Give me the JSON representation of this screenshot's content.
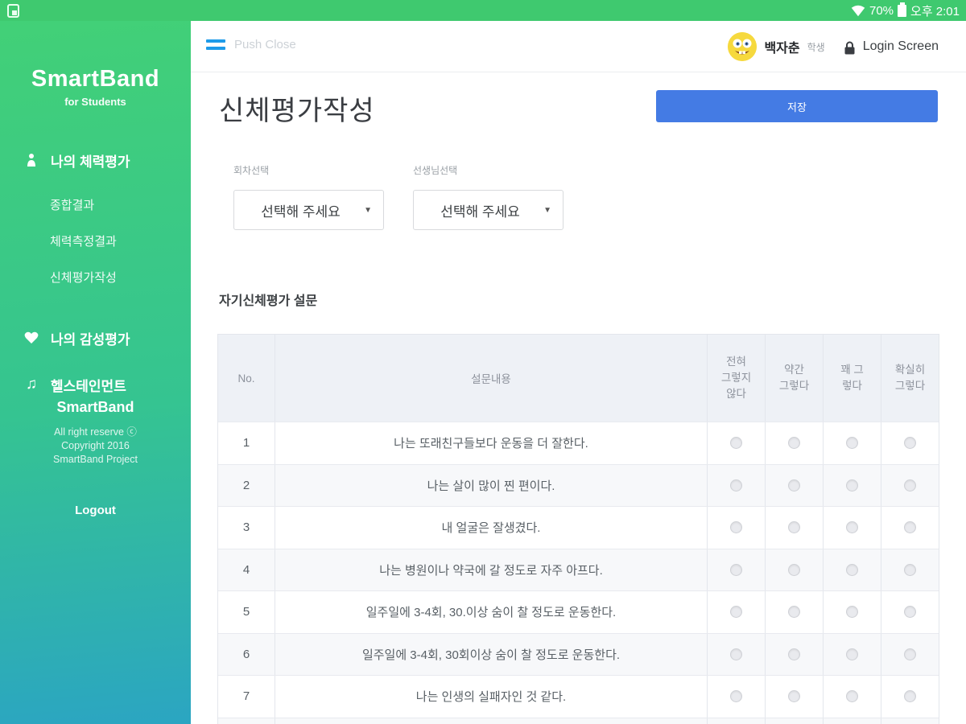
{
  "status_bar": {
    "battery_percent": "70%",
    "time": "오후 2:01"
  },
  "sidebar": {
    "logo": "SmartBand",
    "logo_sub": "for Students",
    "menu": [
      {
        "icon": "person-icon",
        "label": "나의 체력평가"
      },
      {
        "icon": "heart-icon",
        "label": "나의 감성평가"
      },
      {
        "icon": "music-icon",
        "label": "헬스테인먼트"
      }
    ],
    "submenu": [
      "종합결과",
      "체력측정결과",
      "신체평가작성"
    ],
    "footer_brand": "SmartBand",
    "footer_lines": [
      "All right reserve ⓒ",
      "Copyright 2016",
      "SmartBand Project"
    ],
    "logout_label": "Logout"
  },
  "header": {
    "push_close_label": "Push Close",
    "user_name": "백자춘",
    "user_role": "학생",
    "login_screen_label": "Login Screen"
  },
  "page": {
    "title": "신체평가작성",
    "save_label": "저장"
  },
  "filters": [
    {
      "label": "회차선택",
      "value": "선택해 주세요"
    },
    {
      "label": "선생님선택",
      "value": "선택해 주세요"
    }
  ],
  "survey": {
    "section_title": "자기신체평가 설문",
    "columns": {
      "no": "No.",
      "question": "설문내용",
      "options": [
        "전혀\n그렇지\n않다",
        "약간\n그렇다",
        "꽤 그\n렇다",
        "확실히\n그렇다"
      ]
    },
    "rows": [
      {
        "no": "1",
        "question": "나는 또래친구들보다 운동을 더 잘한다."
      },
      {
        "no": "2",
        "question": "나는 살이 많이 찐 편이다."
      },
      {
        "no": "3",
        "question": "내 얼굴은 잘생겼다."
      },
      {
        "no": "4",
        "question": "나는 병원이나 약국에 갈 정도로 자주 아프다."
      },
      {
        "no": "5",
        "question": "일주일에 3-4회, 30.이상 숨이 찰 정도로 운동한다."
      },
      {
        "no": "6",
        "question": "일주일에 3-4회, 30회이상 숨이 찰 정도로 운동한다."
      },
      {
        "no": "7",
        "question": "나는 인생의 실패자인 것 같다."
      },
      {
        "no": "",
        "question": ""
      }
    ]
  },
  "colors": {
    "status_bar_green": "#3fc96f",
    "sidebar_gradient_top": "#42d077",
    "sidebar_gradient_bottom": "#2ba5c2",
    "save_button_blue": "#447be4",
    "hamburger_blue": "#1e9be9",
    "table_header_bg": "#eef1f6"
  }
}
